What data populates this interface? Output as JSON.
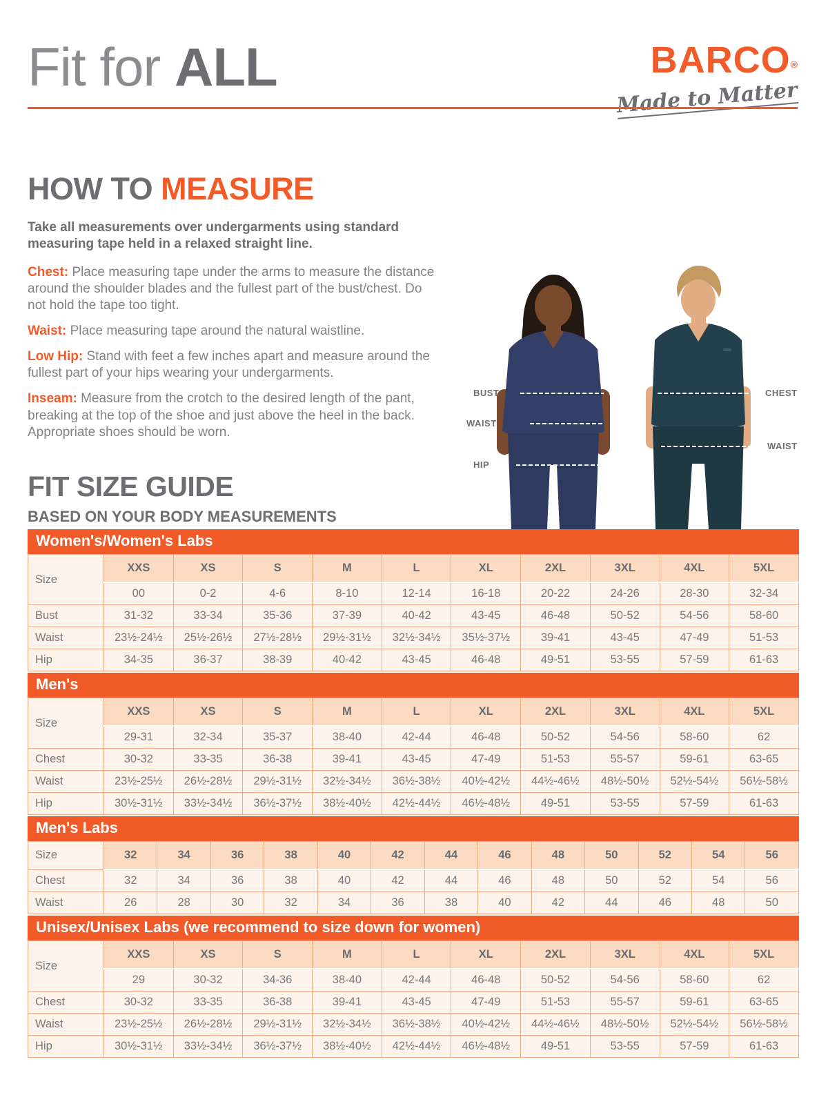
{
  "header": {
    "title_regular": "Fit for ",
    "title_bold": "ALL",
    "brand_name": "BARCO",
    "brand_registered": "®",
    "brand_tagline": "Made to Matter"
  },
  "colors": {
    "accent_orange": "#f15a29",
    "heading_gray": "#6d6e71",
    "table_header_peach": "#fbdcc2",
    "table_cell_cream": "#fdf3ea",
    "table_border": "#f4a97e",
    "woman_scrub_navy": "#333f66",
    "man_scrub_teal": "#24404c"
  },
  "how_to_measure": {
    "heading_gray": "HOW TO ",
    "heading_orange": "MEASURE",
    "intro": "Take all measurements over undergarments using standard measuring tape held in a relaxed straight line.",
    "items": [
      {
        "label": "Chest:",
        "text": " Place measuring tape under the arms to measure the distance around the shoulder blades and the fullest part of the bust/chest. Do not hold the tape too tight."
      },
      {
        "label": "Waist:",
        "text": " Place measuring tape around the natural waistline."
      },
      {
        "label": "Low Hip:",
        "text": " Stand with feet a few inches apart and measure around the fullest part of your hips wearing your undergarments."
      },
      {
        "label": "Inseam:",
        "text": " Measure from the crotch to the desired length of the pant, breaking at the top of the shoe and just above the heel in the back. Appropriate shoes should be worn."
      }
    ]
  },
  "figure": {
    "labels": {
      "bust": "BUST",
      "waist_left": "WAIST",
      "hip": "HIP",
      "chest": "CHEST",
      "waist_right": "WAIST"
    }
  },
  "size_guide": {
    "heading": "FIT SIZE GUIDE",
    "subheading": "BASED ON YOUR BODY MEASUREMENTS",
    "size_label": "Size",
    "tables": [
      {
        "title": "Women's/Women's Labs",
        "sizes": [
          "XXS",
          "XS",
          "S",
          "M",
          "L",
          "XL",
          "2XL",
          "3XL",
          "4XL",
          "5XL"
        ],
        "size_numbers": [
          "00",
          "0-2",
          "4-6",
          "8-10",
          "12-14",
          "16-18",
          "20-22",
          "24-26",
          "28-30",
          "32-34"
        ],
        "rows": [
          {
            "label": "Bust",
            "values": [
              "31-32",
              "33-34",
              "35-36",
              "37-39",
              "40-42",
              "43-45",
              "46-48",
              "50-52",
              "54-56",
              "58-60"
            ]
          },
          {
            "label": "Waist",
            "values": [
              "23½-24½",
              "25½-26½",
              "27½-28½",
              "29½-31½",
              "32½-34½",
              "35½-37½",
              "39-41",
              "43-45",
              "47-49",
              "51-53"
            ]
          },
          {
            "label": "Hip",
            "values": [
              "34-35",
              "36-37",
              "38-39",
              "40-42",
              "43-45",
              "46-48",
              "49-51",
              "53-55",
              "57-59",
              "61-63"
            ]
          }
        ]
      },
      {
        "title": "Men's",
        "sizes": [
          "XXS",
          "XS",
          "S",
          "M",
          "L",
          "XL",
          "2XL",
          "3XL",
          "4XL",
          "5XL"
        ],
        "size_numbers": [
          "29-31",
          "32-34",
          "35-37",
          "38-40",
          "42-44",
          "46-48",
          "50-52",
          "54-56",
          "58-60",
          "62"
        ],
        "rows": [
          {
            "label": "Chest",
            "values": [
              "30-32",
              "33-35",
              "36-38",
              "39-41",
              "43-45",
              "47-49",
              "51-53",
              "55-57",
              "59-61",
              "63-65"
            ]
          },
          {
            "label": "Waist",
            "values": [
              "23½-25½",
              "26½-28½",
              "29½-31½",
              "32½-34½",
              "36½-38½",
              "40½-42½",
              "44½-46½",
              "48½-50½",
              "52½-54½",
              "56½-58½"
            ]
          },
          {
            "label": "Hip",
            "values": [
              "30½-31½",
              "33½-34½",
              "36½-37½",
              "38½-40½",
              "42½-44½",
              "46½-48½",
              "49-51",
              "53-55",
              "57-59",
              "61-63"
            ]
          }
        ]
      },
      {
        "title": "Men's Labs",
        "sizes": [
          "32",
          "34",
          "36",
          "38",
          "40",
          "42",
          "44",
          "46",
          "48",
          "50",
          "52",
          "54",
          "56"
        ],
        "size_numbers": null,
        "rows": [
          {
            "label": "Chest",
            "values": [
              "32",
              "34",
              "36",
              "38",
              "40",
              "42",
              "44",
              "46",
              "48",
              "50",
              "52",
              "54",
              "56"
            ]
          },
          {
            "label": "Waist",
            "values": [
              "26",
              "28",
              "30",
              "32",
              "34",
              "36",
              "38",
              "40",
              "42",
              "44",
              "46",
              "48",
              "50"
            ]
          }
        ]
      },
      {
        "title": "Unisex/Unisex Labs (we recommend to size down for women)",
        "sizes": [
          "XXS",
          "XS",
          "S",
          "M",
          "L",
          "XL",
          "2XL",
          "3XL",
          "4XL",
          "5XL"
        ],
        "size_numbers": [
          "29",
          "30-32",
          "34-36",
          "38-40",
          "42-44",
          "46-48",
          "50-52",
          "54-56",
          "58-60",
          "62"
        ],
        "rows": [
          {
            "label": "Chest",
            "values": [
              "30-32",
              "33-35",
              "36-38",
              "39-41",
              "43-45",
              "47-49",
              "51-53",
              "55-57",
              "59-61",
              "63-65"
            ]
          },
          {
            "label": "Waist",
            "values": [
              "23½-25½",
              "26½-28½",
              "29½-31½",
              "32½-34½",
              "36½-38½",
              "40½-42½",
              "44½-46½",
              "48½-50½",
              "52½-54½",
              "56½-58½"
            ]
          },
          {
            "label": "Hip",
            "values": [
              "30½-31½",
              "33½-34½",
              "36½-37½",
              "38½-40½",
              "42½-44½",
              "46½-48½",
              "49-51",
              "53-55",
              "57-59",
              "61-63"
            ]
          }
        ]
      }
    ]
  }
}
